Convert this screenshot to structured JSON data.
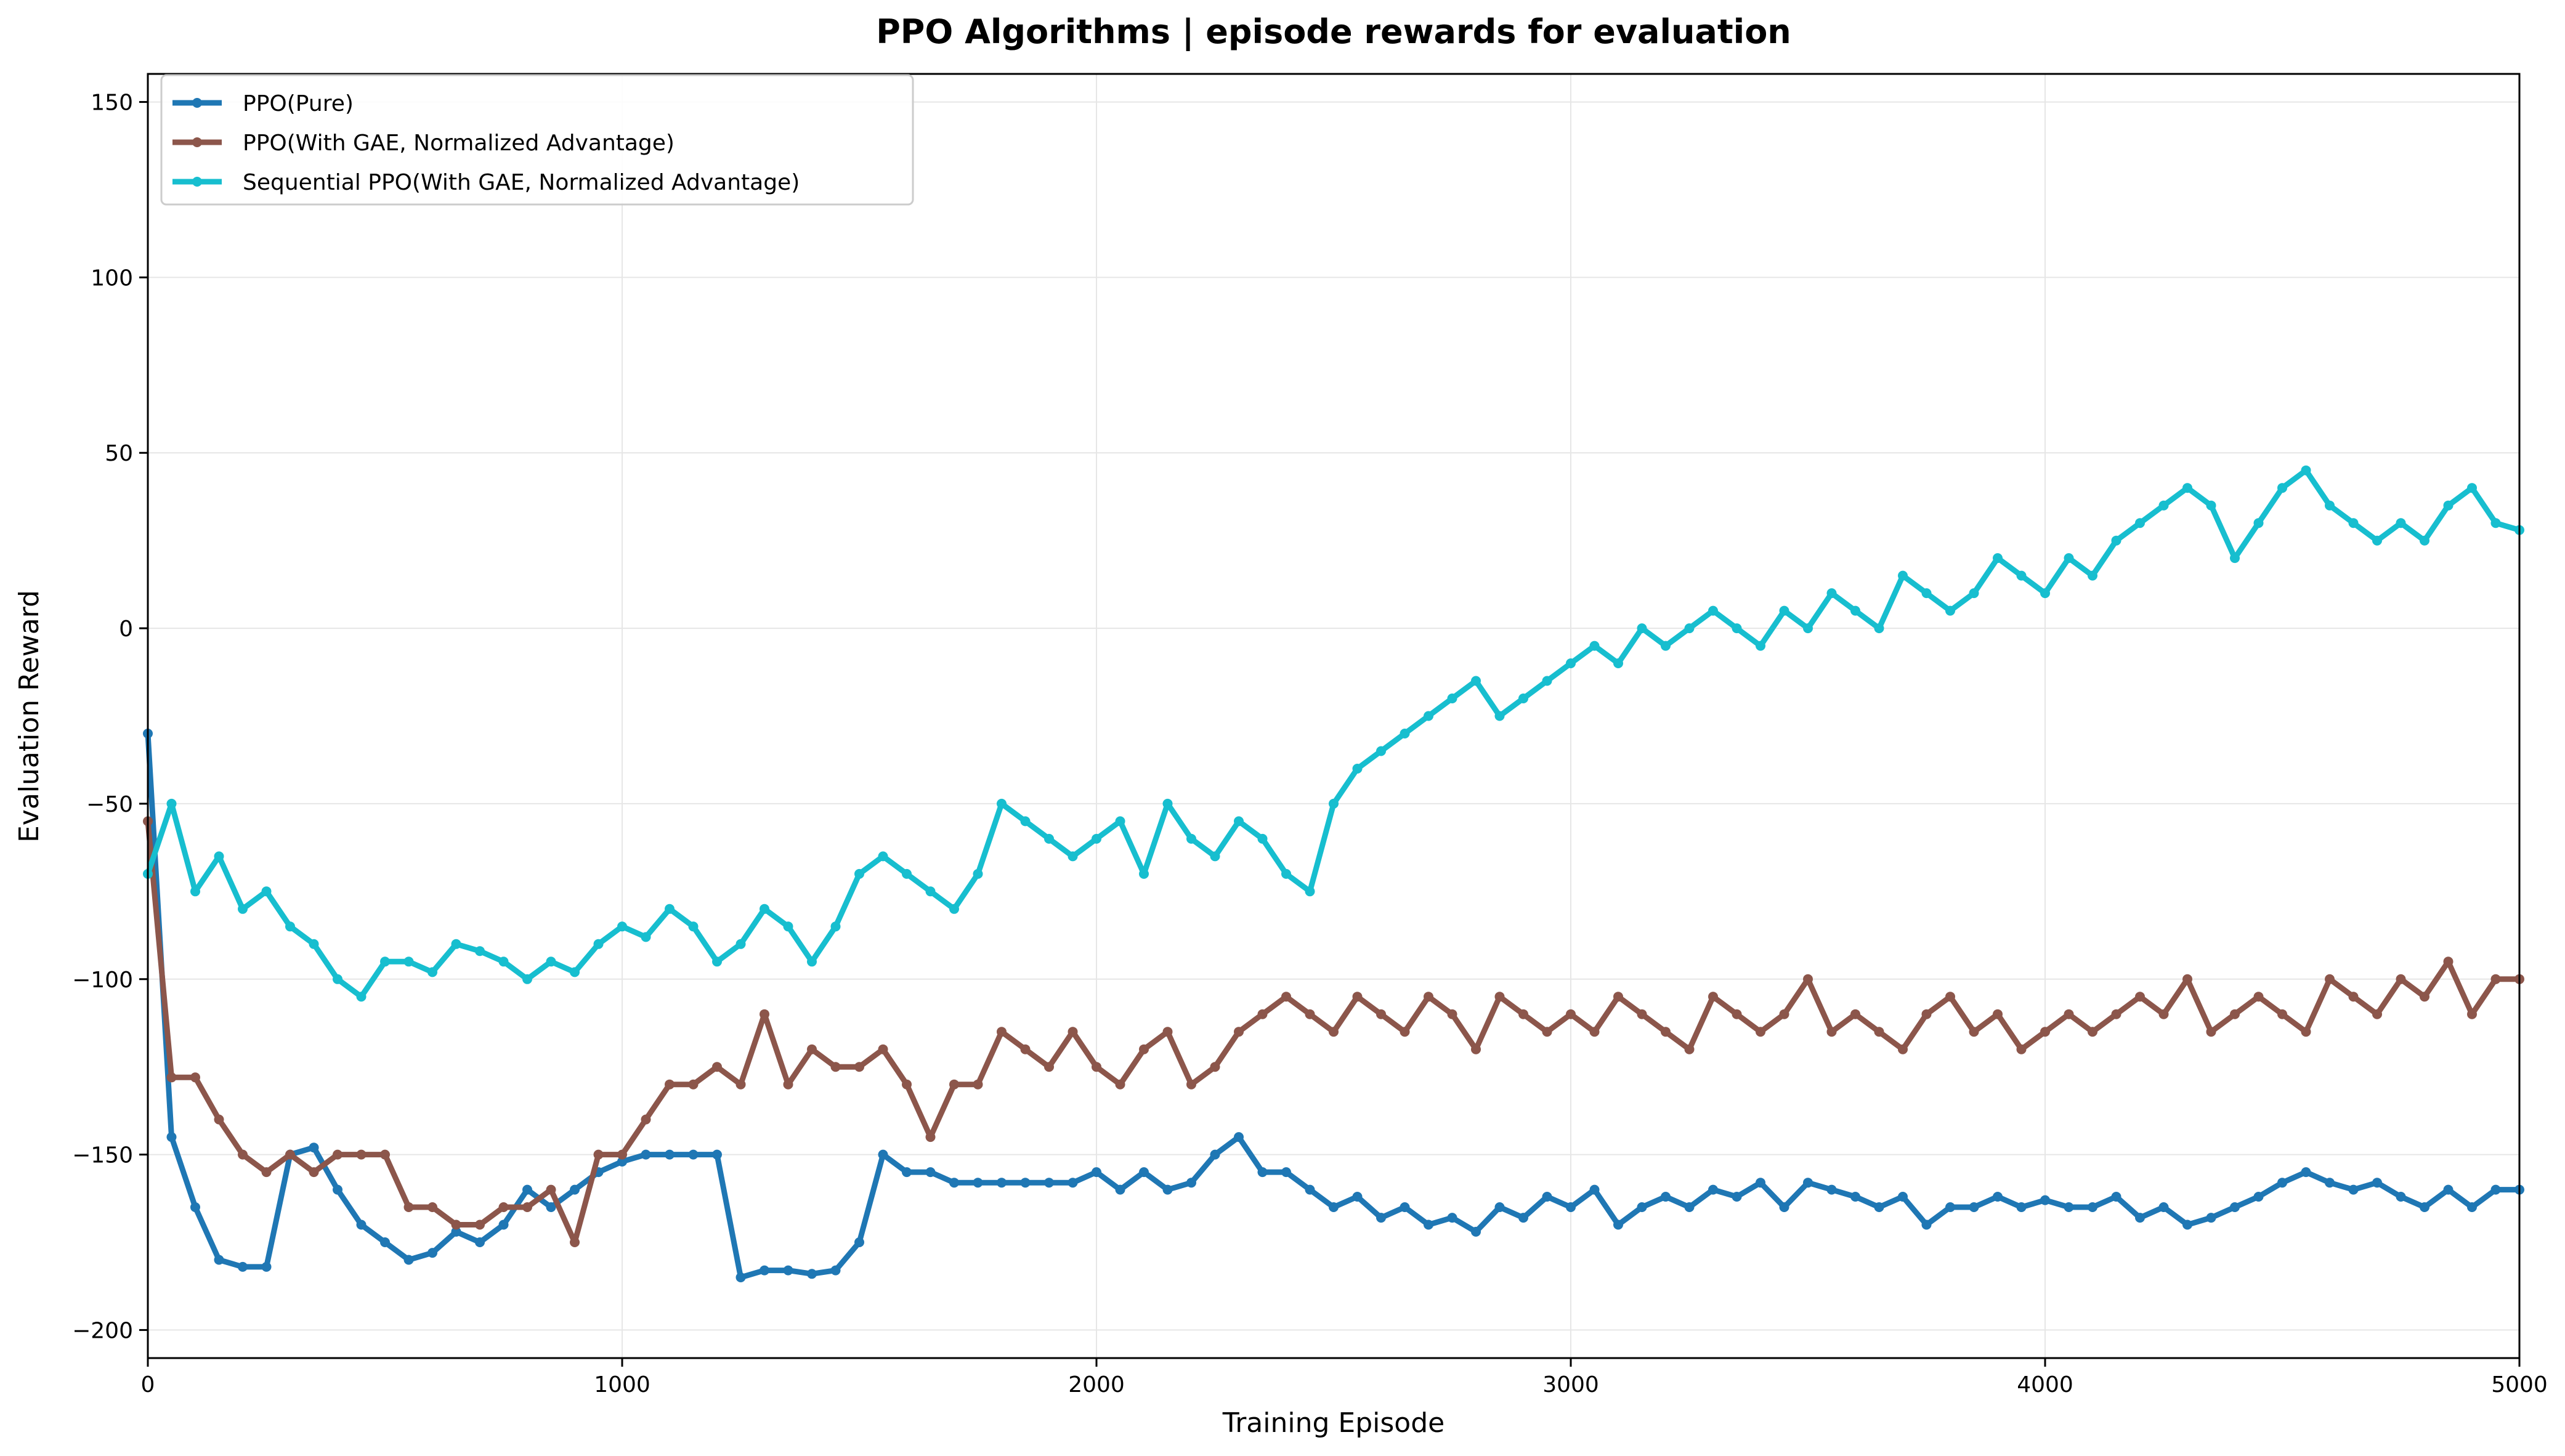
{
  "chart_data": {
    "type": "line",
    "title": "PPO Algorithms | episode rewards for evaluation",
    "xlabel": "Training Episode",
    "ylabel": "Evaluation Reward",
    "xlim": [
      0,
      5000
    ],
    "ylim": [
      -208,
      158
    ],
    "xticks": [
      0,
      1000,
      2000,
      3000,
      4000,
      5000
    ],
    "xtick_labels": [
      "0",
      "1000",
      "2000",
      "3000",
      "4000",
      "5000"
    ],
    "yticks": [
      -200,
      -150,
      -100,
      -50,
      0,
      50,
      100,
      150
    ],
    "ytick_labels": [
      "−200",
      "−150",
      "−100",
      "−50",
      "0",
      "50",
      "100",
      "150"
    ],
    "grid": true,
    "legend_position": "top-left",
    "series": [
      {
        "name": "PPO(Pure)",
        "color": "#1f77b4",
        "x": [
          0,
          50,
          100,
          150,
          200,
          250,
          300,
          350,
          400,
          450,
          500,
          550,
          600,
          650,
          700,
          750,
          800,
          850,
          900,
          950,
          1000,
          1050,
          1100,
          1150,
          1200,
          1250,
          1300,
          1350,
          1400,
          1450,
          1500,
          1550,
          1600,
          1650,
          1700,
          1750,
          1800,
          1850,
          1900,
          1950,
          2000,
          2050,
          2100,
          2150,
          2200,
          2250,
          2300,
          2350,
          2400,
          2450,
          2500,
          2550,
          2600,
          2650,
          2700,
          2750,
          2800,
          2850,
          2900,
          2950,
          3000,
          3050,
          3100,
          3150,
          3200,
          3250,
          3300,
          3350,
          3400,
          3450,
          3500,
          3550,
          3600,
          3650,
          3700,
          3750,
          3800,
          3850,
          3900,
          3950,
          4000,
          4050,
          4100,
          4150,
          4200,
          4250,
          4300,
          4350,
          4400,
          4450,
          4500,
          4550,
          4600,
          4650,
          4700,
          4750,
          4800,
          4850,
          4900,
          4950,
          5000
        ],
        "values": [
          -30,
          -145,
          -165,
          -180,
          -182,
          -182,
          -150,
          -148,
          -160,
          -170,
          -175,
          -180,
          -178,
          -172,
          -175,
          -170,
          -160,
          -165,
          -160,
          -155,
          -152,
          -150,
          -150,
          -150,
          -150,
          -185,
          -183,
          -183,
          -184,
          -183,
          -175,
          -150,
          -155,
          -155,
          -158,
          -158,
          -158,
          -158,
          -158,
          -158,
          -155,
          -160,
          -155,
          -160,
          -158,
          -150,
          -145,
          -155,
          -155,
          -160,
          -165,
          -162,
          -168,
          -165,
          -170,
          -168,
          -172,
          -165,
          -168,
          -162,
          -165,
          -160,
          -170,
          -165,
          -162,
          -165,
          -160,
          -162,
          -158,
          -165,
          -158,
          -160,
          -162,
          -165,
          -162,
          -170,
          -165,
          -165,
          -162,
          -165,
          -163,
          -165,
          -165,
          -162,
          -168,
          -165,
          -170,
          -168,
          -165,
          -162,
          -158,
          -155,
          -158,
          -160,
          -158,
          -162,
          -165,
          -160,
          -165,
          -160,
          -160
        ]
      },
      {
        "name": "PPO(With GAE, Normalized Advantage)",
        "color": "#8c564b",
        "x": [
          0,
          50,
          100,
          150,
          200,
          250,
          300,
          350,
          400,
          450,
          500,
          550,
          600,
          650,
          700,
          750,
          800,
          850,
          900,
          950,
          1000,
          1050,
          1100,
          1150,
          1200,
          1250,
          1300,
          1350,
          1400,
          1450,
          1500,
          1550,
          1600,
          1650,
          1700,
          1750,
          1800,
          1850,
          1900,
          1950,
          2000,
          2050,
          2100,
          2150,
          2200,
          2250,
          2300,
          2350,
          2400,
          2450,
          2500,
          2550,
          2600,
          2650,
          2700,
          2750,
          2800,
          2850,
          2900,
          2950,
          3000,
          3050,
          3100,
          3150,
          3200,
          3250,
          3300,
          3350,
          3400,
          3450,
          3500,
          3550,
          3600,
          3650,
          3700,
          3750,
          3800,
          3850,
          3900,
          3950,
          4000,
          4050,
          4100,
          4150,
          4200,
          4250,
          4300,
          4350,
          4400,
          4450,
          4500,
          4550,
          4600,
          4650,
          4700,
          4750,
          4800,
          4850,
          4900,
          4950,
          5000
        ],
        "values": [
          -55,
          -128,
          -128,
          -140,
          -150,
          -155,
          -150,
          -155,
          -150,
          -150,
          -150,
          -165,
          -165,
          -170,
          -170,
          -165,
          -165,
          -160,
          -175,
          -150,
          -150,
          -140,
          -130,
          -130,
          -125,
          -130,
          -110,
          -130,
          -120,
          -125,
          -125,
          -120,
          -130,
          -145,
          -130,
          -130,
          -115,
          -120,
          -125,
          -115,
          -125,
          -130,
          -120,
          -115,
          -130,
          -125,
          -115,
          -110,
          -105,
          -110,
          -115,
          -105,
          -110,
          -115,
          -105,
          -110,
          -120,
          -105,
          -110,
          -115,
          -110,
          -115,
          -105,
          -110,
          -115,
          -120,
          -105,
          -110,
          -115,
          -110,
          -100,
          -115,
          -110,
          -115,
          -120,
          -110,
          -105,
          -115,
          -110,
          -120,
          -115,
          -110,
          -115,
          -110,
          -105,
          -110,
          -100,
          -115,
          -110,
          -105,
          -110,
          -115,
          -100,
          -105,
          -110,
          -100,
          -105,
          -95,
          -110,
          -100,
          -100
        ]
      },
      {
        "name": "Sequential PPO(With GAE, Normalized Advantage)",
        "color": "#17becf",
        "x": [
          0,
          50,
          100,
          150,
          200,
          250,
          300,
          350,
          400,
          450,
          500,
          550,
          600,
          650,
          700,
          750,
          800,
          850,
          900,
          950,
          1000,
          1050,
          1100,
          1150,
          1200,
          1250,
          1300,
          1350,
          1400,
          1450,
          1500,
          1550,
          1600,
          1650,
          1700,
          1750,
          1800,
          1850,
          1900,
          1950,
          2000,
          2050,
          2100,
          2150,
          2200,
          2250,
          2300,
          2350,
          2400,
          2450,
          2500,
          2550,
          2600,
          2650,
          2700,
          2750,
          2800,
          2850,
          2900,
          2950,
          3000,
          3050,
          3100,
          3150,
          3200,
          3250,
          3300,
          3350,
          3400,
          3450,
          3500,
          3550,
          3600,
          3650,
          3700,
          3750,
          3800,
          3850,
          3900,
          3950,
          4000,
          4050,
          4100,
          4150,
          4200,
          4250,
          4300,
          4350,
          4400,
          4450,
          4500,
          4550,
          4600,
          4650,
          4700,
          4750,
          4800,
          4850,
          4900,
          4950,
          5000
        ],
        "values": [
          -70,
          -50,
          -75,
          -65,
          -80,
          -75,
          -85,
          -90,
          -100,
          -105,
          -95,
          -95,
          -98,
          -90,
          -92,
          -95,
          -100,
          -95,
          -98,
          -90,
          -85,
          -88,
          -80,
          -85,
          -95,
          -90,
          -80,
          -85,
          -95,
          -85,
          -70,
          -65,
          -70,
          -75,
          -80,
          -70,
          -50,
          -55,
          -60,
          -65,
          -60,
          -55,
          -70,
          -50,
          -60,
          -65,
          -55,
          -60,
          -70,
          -75,
          -50,
          -40,
          -35,
          -30,
          -25,
          -20,
          -15,
          -25,
          -20,
          -15,
          -10,
          -5,
          -10,
          0,
          -5,
          0,
          5,
          0,
          -5,
          5,
          0,
          10,
          5,
          0,
          15,
          10,
          5,
          10,
          20,
          15,
          10,
          20,
          15,
          25,
          30,
          35,
          40,
          35,
          20,
          30,
          40,
          45,
          35,
          30,
          25,
          30,
          25,
          35,
          40,
          30,
          28
        ]
      }
    ]
  }
}
